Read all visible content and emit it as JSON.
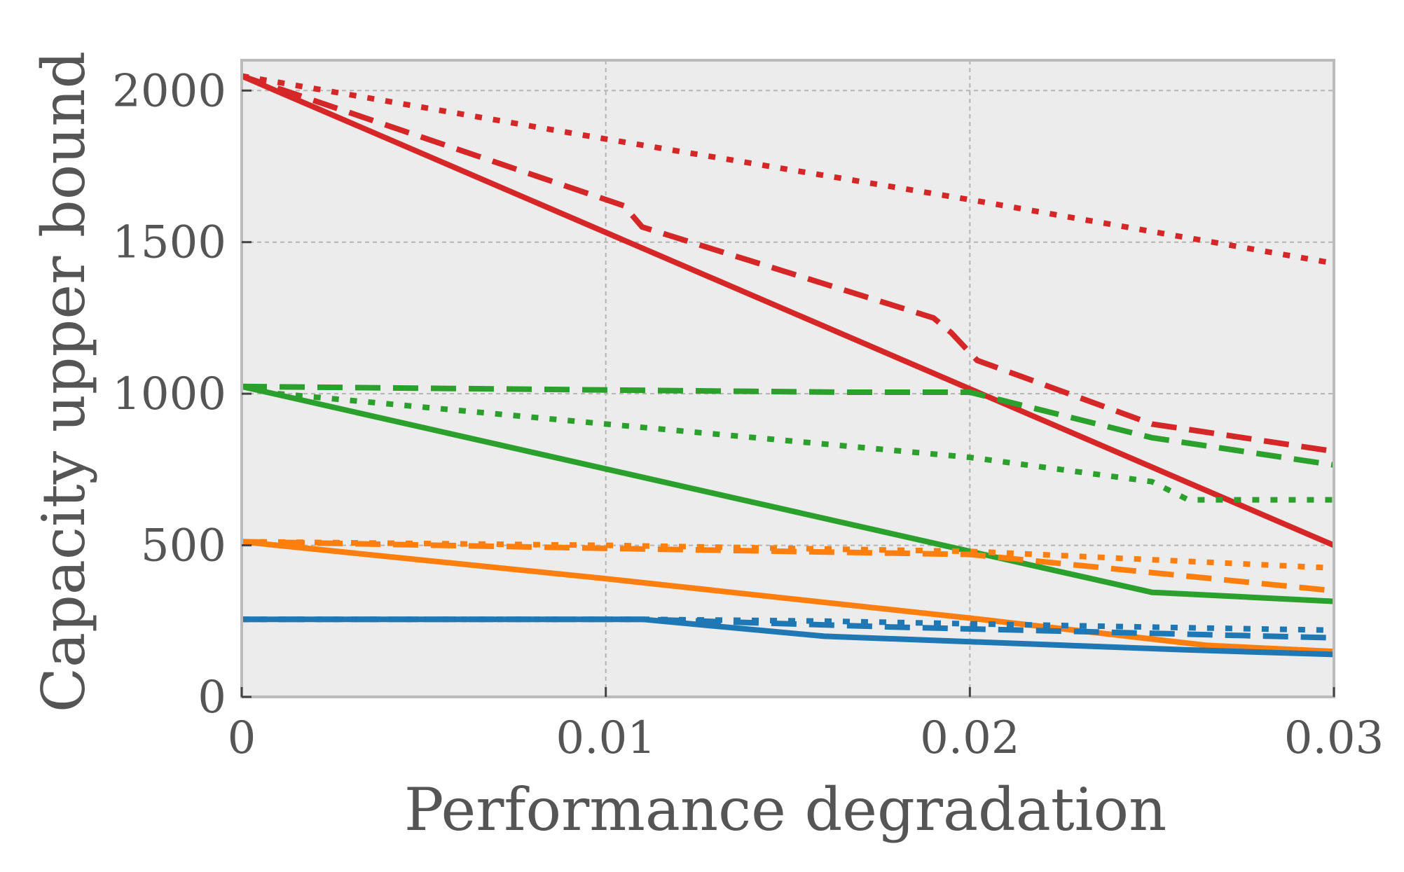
{
  "chart_data": {
    "type": "line",
    "title": "",
    "xlabel": "Performance degradation",
    "ylabel": "Capacity upper bound",
    "xlim": [
      0,
      0.03
    ],
    "ylim": [
      0,
      2100
    ],
    "grid": true,
    "xticks": [
      0,
      0.01,
      0.02,
      0.03
    ],
    "xtick_labels": [
      "0",
      "0.01",
      "0.02",
      "0.03"
    ],
    "yticks": [
      0,
      500,
      1000,
      1500,
      2000
    ],
    "ytick_labels": [
      "0",
      "500",
      "1000",
      "1500",
      "2000"
    ],
    "series": [
      {
        "name": "red-solid",
        "color": "#d62728",
        "style": "solid",
        "x": [
          0,
          0.03
        ],
        "y": [
          2048,
          500
        ]
      },
      {
        "name": "red-dashed",
        "color": "#d62728",
        "style": "dashed",
        "x": [
          0,
          0.0105,
          0.011,
          0.019,
          0.0195,
          0.0202,
          0.025,
          0.03
        ],
        "y": [
          2048,
          1620,
          1550,
          1250,
          1200,
          1110,
          900,
          810
        ]
      },
      {
        "name": "red-dotted",
        "color": "#d62728",
        "style": "dotted",
        "x": [
          0,
          0.01,
          0.02,
          0.03
        ],
        "y": [
          2048,
          1840,
          1640,
          1430
        ]
      },
      {
        "name": "green-solid",
        "color": "#2ca02c",
        "style": "solid",
        "x": [
          0,
          0.02,
          0.025,
          0.03
        ],
        "y": [
          1024,
          480,
          345,
          315
        ]
      },
      {
        "name": "green-dashed",
        "color": "#2ca02c",
        "style": "dashed",
        "x": [
          0,
          0.0165,
          0.02,
          0.025,
          0.03
        ],
        "y": [
          1024,
          1005,
          1005,
          855,
          765
        ]
      },
      {
        "name": "green-dotted",
        "color": "#2ca02c",
        "style": "dotted",
        "x": [
          0,
          0.001,
          0.01,
          0.02,
          0.025,
          0.026,
          0.03
        ],
        "y": [
          1024,
          1000,
          900,
          790,
          710,
          650,
          650
        ]
      },
      {
        "name": "orange-solid",
        "color": "#ff7f0e",
        "style": "solid",
        "x": [
          0,
          0.01,
          0.02,
          0.0265,
          0.03
        ],
        "y": [
          512,
          390,
          260,
          170,
          150
        ]
      },
      {
        "name": "orange-dashed",
        "color": "#ff7f0e",
        "style": "dashed",
        "x": [
          0,
          0.01,
          0.02,
          0.03
        ],
        "y": [
          512,
          490,
          470,
          350
        ]
      },
      {
        "name": "orange-dotted",
        "color": "#ff7f0e",
        "style": "dotted",
        "x": [
          0,
          0.01,
          0.02,
          0.03
        ],
        "y": [
          512,
          500,
          480,
          425
        ]
      },
      {
        "name": "blue-solid",
        "color": "#1f77b4",
        "style": "solid",
        "x": [
          0,
          0.011,
          0.016,
          0.026,
          0.03
        ],
        "y": [
          256,
          256,
          200,
          155,
          140
        ]
      },
      {
        "name": "blue-dashed",
        "color": "#1f77b4",
        "style": "dashed",
        "x": [
          0,
          0.011,
          0.018,
          0.03
        ],
        "y": [
          256,
          256,
          230,
          195
        ]
      },
      {
        "name": "blue-dotted",
        "color": "#1f77b4",
        "style": "dotted",
        "x": [
          0,
          0.011,
          0.016,
          0.025,
          0.03
        ],
        "y": [
          256,
          256,
          250,
          230,
          220
        ]
      }
    ]
  }
}
